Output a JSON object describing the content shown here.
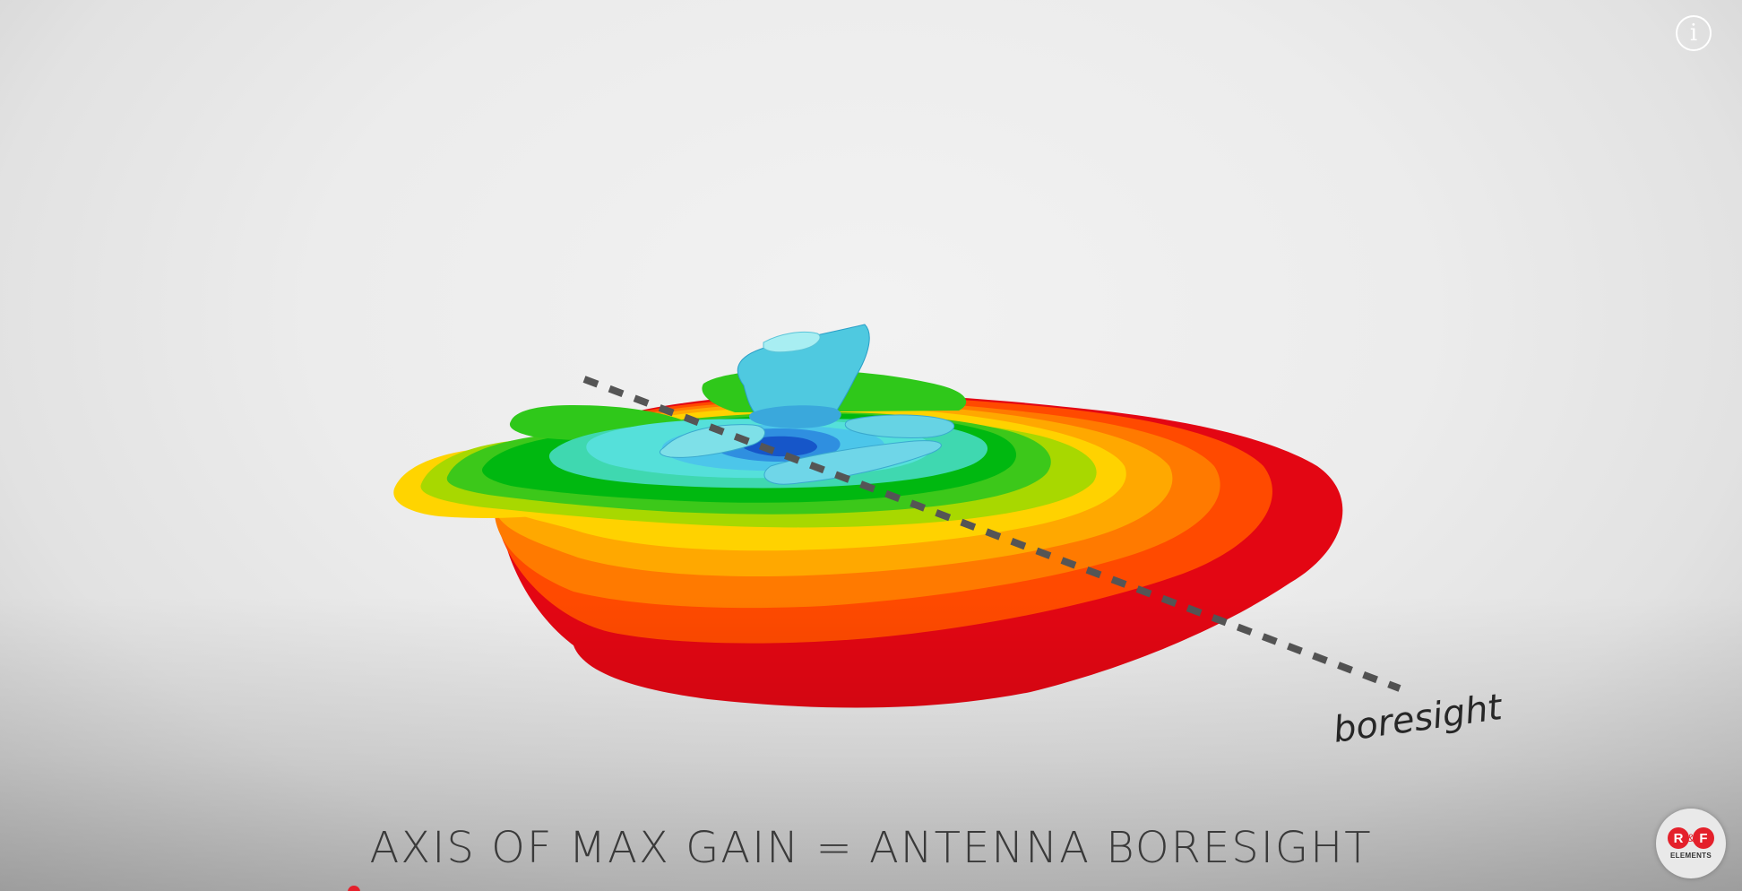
{
  "video": {
    "caption": "AXIS OF MAX GAIN = ANTENNA BORESIGHT",
    "boresight_label": "boresight",
    "info_icon": "info-icon",
    "info_glyph": "i"
  },
  "logo": {
    "letter_left": "R",
    "amp": "&",
    "letter_right": "F",
    "subtitle": "ELEMENTS",
    "brand_color": "#e4202b"
  },
  "colors": {
    "gain_scale": [
      "#e30613",
      "#ff6a00",
      "#ff9f00",
      "#ffd000",
      "#9ad400",
      "#2fc81a",
      "#00c000",
      "#3fd8b0",
      "#5ae3e0",
      "#2f8fe0",
      "#1656c9"
    ],
    "dashed_axis": "#555555"
  }
}
